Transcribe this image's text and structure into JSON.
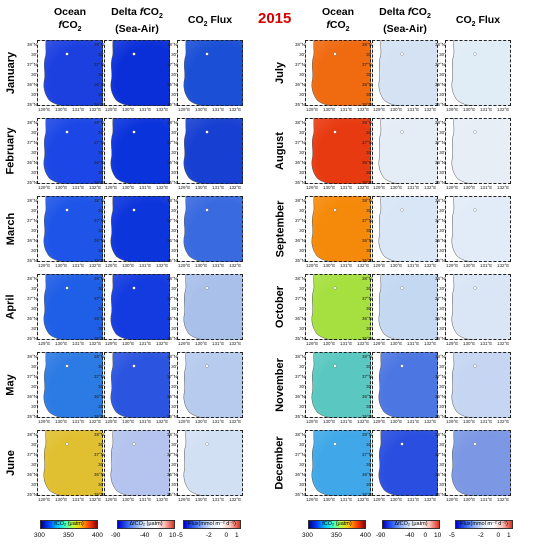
{
  "year": "2015",
  "headers": {
    "left": [
      {
        "line1": "Ocean",
        "line2": "fCO",
        "sub": "2"
      },
      {
        "line1": "Delta fCO",
        "sub1": "2",
        "line2": "(Sea-Air)"
      },
      {
        "line1": "CO",
        "sub1": "2",
        "rest": " Flux"
      }
    ],
    "right": [
      {
        "line1": "Ocean",
        "line2": "fCO",
        "sub": "2"
      },
      {
        "line1": "Delta fCO",
        "sub1": "2",
        "line2": "(Sea-Air)"
      },
      {
        "line1": "CO",
        "sub1": "2",
        "rest": " Flux"
      }
    ]
  },
  "months_left": [
    "January",
    "February",
    "March",
    "April",
    "May",
    "June"
  ],
  "months_right": [
    "July",
    "August",
    "September",
    "October",
    "November",
    "December"
  ],
  "lat_labels": [
    "38°N",
    "30'",
    "37°N",
    "30'",
    "36°N",
    "30'",
    "35°N"
  ],
  "lon_labels": [
    "129°E",
    "130°E",
    "131°E",
    "132°E"
  ],
  "colorbars": [
    {
      "label": "fCO₂ (μatm)",
      "ticks": [
        "300",
        "350",
        "400"
      ],
      "scale": "jet"
    },
    {
      "label": "ΔfCO₂ (μatm)",
      "ticks": [
        "-90",
        "-40",
        "0",
        "10"
      ],
      "scale": "bwr"
    },
    {
      "label": "Flux(mmol m⁻² d⁻¹)",
      "ticks": [
        "-5",
        "-2",
        "0",
        "1"
      ],
      "scale": "bwr"
    },
    {
      "label": "fCO₂ (μatm)",
      "ticks": [
        "300",
        "350",
        "400"
      ],
      "scale": "jet"
    },
    {
      "label": "ΔfCO₂ (μatm)",
      "ticks": [
        "-90",
        "-40",
        "0",
        "10"
      ],
      "scale": "bwr"
    },
    {
      "label": "Flux(mmol m⁻² d⁻¹)",
      "ticks": [
        "-5",
        "-2",
        "0",
        "1"
      ],
      "scale": "bwr"
    }
  ],
  "colors": {
    "year": "#d40000",
    "land": "#ffffff"
  },
  "panel_fills": [
    [
      "#1c3fe0",
      "#0a2fd8",
      "#1a4fd6"
    ],
    [
      "#1c47e6",
      "#0b33dc",
      "#1740d2"
    ],
    [
      "#1e55e8",
      "#0d35dc",
      "#3a6ae0"
    ],
    [
      "#1f5ee6",
      "#143be0",
      "#a9c0ea"
    ],
    [
      "#2c7ae4",
      "#2b55e0",
      "#b7cbee"
    ],
    [
      "#e0c030",
      "#b4c4ee",
      "#d2e0f4"
    ],
    [
      "#f06a10",
      "#d4e2f4",
      "#e0ecf6"
    ],
    [
      "#e83a10",
      "#e4ecf6",
      "#e8eef6"
    ],
    [
      "#f58a0a",
      "#d8e6f6",
      "#e2ecf8"
    ],
    [
      "#a6e040",
      "#c4d8f2",
      "#dae6f6"
    ],
    [
      "#5ac8c0",
      "#4c76e2",
      "#c6d6f2"
    ],
    [
      "#40a8e8",
      "#2a4ee0",
      "#7c98e4"
    ]
  ]
}
